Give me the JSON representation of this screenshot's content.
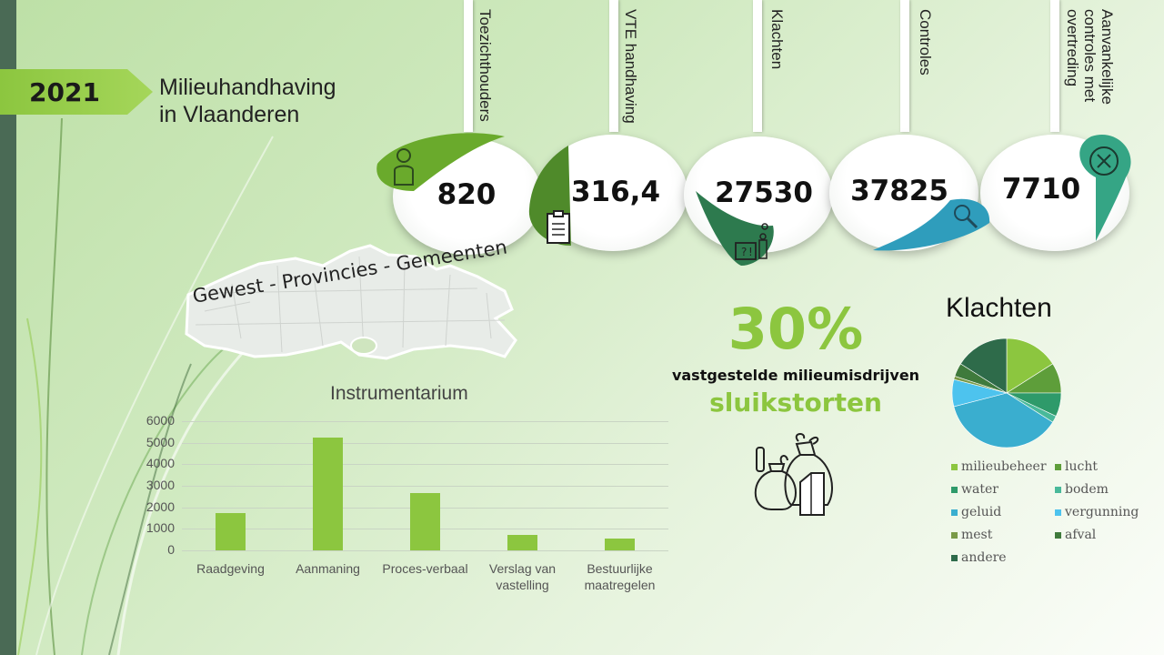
{
  "header": {
    "year": "2021",
    "title_line1": "Milieuhandhaving",
    "title_line2": "in Vlaanderen"
  },
  "stats": [
    {
      "label": "Toezichthouders",
      "value": "820",
      "icon": "person-icon",
      "color": "#6aaa2c"
    },
    {
      "label": "VTE handhaving",
      "value": "316,4",
      "icon": "clipboard-icon",
      "color": "#4f8a2a"
    },
    {
      "label": "Klachten",
      "value": "27530",
      "icon": "complaint-icon",
      "color": "#2d7a4e"
    },
    {
      "label": "Controles",
      "value": "37825",
      "icon": "magnifier-icon",
      "color": "#2f9dbc"
    },
    {
      "label": "Aanvankelijke\ncontroles met\novertreding",
      "value": "7710",
      "icon": "x-circle-icon",
      "color": "#35a585"
    }
  ],
  "map": {
    "label": "Gewest  - Provincies - Gemeenten"
  },
  "highlight": {
    "percent": "30%",
    "subtitle": "vastgestelde milieumisdrijven",
    "category": "sluikstorten",
    "icon": "waste-bags-icon"
  },
  "chart_data": [
    {
      "type": "bar",
      "title": "Instrumentarium",
      "categories": [
        "Raadgeving",
        "Aanmaning",
        "Proces-verbaal",
        "Verslag van vastelling",
        "Bestuurlijke maatregelen"
      ],
      "category_lines": [
        [
          "Raadgeving"
        ],
        [
          "Aanmaning"
        ],
        [
          "Proces-verbaal"
        ],
        [
          "Verslag van",
          "vastelling"
        ],
        [
          "Bestuurlijke",
          "maatregelen"
        ]
      ],
      "values": [
        1750,
        5250,
        2650,
        700,
        560
      ],
      "ylim": [
        0,
        6000
      ],
      "yticks": [
        "0",
        "1000",
        "2000",
        "3000",
        "4000",
        "5000",
        "6000"
      ],
      "grid": true,
      "bar_color": "#8cc63f"
    },
    {
      "type": "pie",
      "title": "Klachten",
      "labels": [
        "milieubeheer",
        "lucht",
        "water",
        "bodem",
        "geluid",
        "vergunning",
        "mest",
        "afval",
        "andere"
      ],
      "values": [
        16,
        9,
        7,
        2,
        37,
        8,
        1,
        4,
        16
      ],
      "colors": [
        "#8cc63f",
        "#5e9e3a",
        "#2e9a6a",
        "#49b99a",
        "#3aaecf",
        "#4dc3ee",
        "#7a9a48",
        "#3f7a3c",
        "#2e6b4a"
      ],
      "legend_position": "bottom"
    }
  ]
}
